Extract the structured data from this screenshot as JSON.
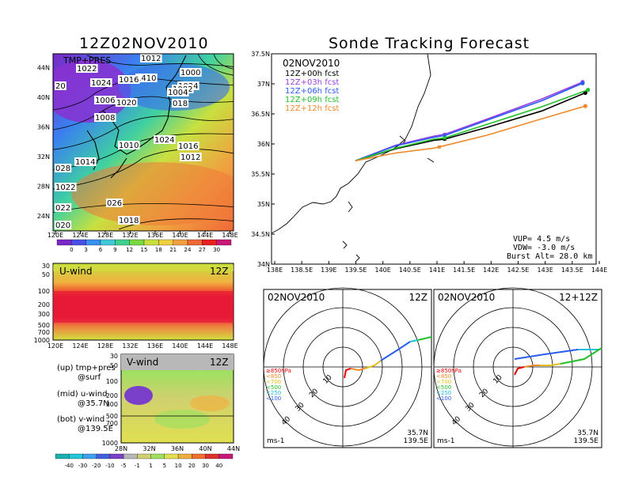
{
  "page": {
    "left_title": "12Z02NOV2010",
    "right_title": "Sonde Tracking Forecast"
  },
  "colors": {
    "purple": "#9b3fe0",
    "black": "#000000",
    "blue": "#2a5cf0",
    "green": "#22c02a",
    "orange": "#f08a2a",
    "red": "#e80000",
    "cyan": "#20c0d8"
  },
  "surface_panel": {
    "label": "TMP+PRES",
    "lon_ticks": [
      "120E",
      "124E",
      "128E",
      "132E",
      "136E",
      "140E",
      "144E",
      "148E"
    ],
    "lat_ticks": [
      "24N",
      "28N",
      "32N",
      "36N",
      "40N",
      "44N"
    ],
    "isobar_labels": [
      "1012",
      "1022",
      "1000",
      "1410",
      "1016",
      "1024",
      "20",
      "1024",
      "1002",
      "1004",
      "1006",
      "1020",
      "018",
      "1008",
      "1024",
      "1010",
      "1016",
      "1012",
      "1014",
      "028",
      "1022",
      "026",
      "022",
      "1018",
      "020"
    ],
    "colorbar_ticks": [
      "0",
      "3",
      "6",
      "9",
      "12",
      "15",
      "18",
      "21",
      "24",
      "27",
      "30"
    ],
    "colorbar_colors": [
      "#7a28c8",
      "#4a50e8",
      "#3a90f0",
      "#40c8d8",
      "#40d090",
      "#7ad840",
      "#c8e040",
      "#f0d040",
      "#f0a040",
      "#f06838",
      "#e82020",
      "#c81878"
    ]
  },
  "uwind_panel": {
    "title": "U-wind",
    "time": "12Z",
    "p_ticks": [
      "30",
      "50",
      "100",
      "200",
      "300",
      "500",
      "700",
      "1000"
    ],
    "lon_ticks": [
      "120E",
      "124E",
      "128E",
      "132E",
      "136E",
      "140E",
      "144E",
      "148E"
    ]
  },
  "vwind_panel": {
    "title": "V-wind",
    "time": "12Z",
    "p_ticks": [
      "30",
      "50",
      "100",
      "200",
      "300",
      "500",
      "700",
      "1000"
    ],
    "lat_ticks": [
      "28N",
      "32N",
      "36N",
      "40N",
      "44N"
    ],
    "colorbar_ticks": [
      "-40",
      "-30",
      "-20",
      "-10",
      "-5",
      "-1",
      "1",
      "5",
      "10",
      "20",
      "30",
      "40"
    ],
    "colorbar_colors": [
      "#1ab0b0",
      "#20c8d8",
      "#40a0f0",
      "#4060e0",
      "#7a40c8",
      "#b8b8b8",
      "#d0d070",
      "#a0e060",
      "#e0e050",
      "#f0b040",
      "#f07030",
      "#e03030",
      "#c81878"
    ]
  },
  "legend_notes": [
    {
      "line1": "(up) tmp+pres",
      "line2": "@surf"
    },
    {
      "line1": "(mid) u-wind",
      "line2": "@35.7N"
    },
    {
      "line1": "(bot) v-wind",
      "line2": "@139.5E"
    }
  ],
  "track_map": {
    "date": "02NOV2010",
    "legend": [
      {
        "label": "12Z+00h fcst",
        "color": "#000000"
      },
      {
        "label": "12Z+03h fcst",
        "color": "#9b3fe0"
      },
      {
        "label": "12Z+06h fcst",
        "color": "#2a5cf0"
      },
      {
        "label": "12Z+09h fcst",
        "color": "#22c02a"
      },
      {
        "label": "12Z+12h fcst",
        "color": "#f08a2a"
      }
    ],
    "x_ticks": [
      "138E",
      "138.5E",
      "139E",
      "139.5E",
      "140E",
      "140.5E",
      "141E",
      "141.5E",
      "142E",
      "142.5E",
      "143E",
      "143.5E",
      "144E"
    ],
    "y_ticks": [
      "34N",
      "34.5N",
      "35N",
      "35.5N",
      "36N",
      "36.5N",
      "37N",
      "37.5N"
    ],
    "vup": "VUP=  4.5 m/s",
    "vdw": "VDW= -3.0 m/s",
    "burst": "Burst Alt= 28.0 km"
  },
  "chart_data": [
    {
      "type": "line",
      "title": "Sonde Tracking Forecast",
      "xlim": [
        138,
        144
      ],
      "ylim": [
        34,
        37.5
      ],
      "series": [
        {
          "name": "12Z+00h fcst",
          "x": [
            139.55,
            140.3,
            141.0,
            141.2,
            142.0,
            143.0,
            143.8
          ],
          "y": [
            35.72,
            35.92,
            36.06,
            36.08,
            36.28,
            36.55,
            36.85
          ]
        },
        {
          "name": "12Z+03h fcst",
          "x": [
            139.55,
            140.3,
            141.0,
            141.2,
            142.0,
            143.0,
            143.75
          ],
          "y": [
            35.72,
            35.98,
            36.13,
            36.16,
            36.42,
            36.75,
            37.03
          ]
        },
        {
          "name": "12Z+06h fcst",
          "x": [
            139.55,
            140.3,
            141.0,
            141.2,
            142.0,
            143.0,
            143.75
          ],
          "y": [
            35.72,
            35.97,
            36.11,
            36.14,
            36.4,
            36.72,
            37.01
          ]
        },
        {
          "name": "12Z+09h fcst",
          "x": [
            139.55,
            140.3,
            141.0,
            141.2,
            142.0,
            143.0,
            143.85
          ],
          "y": [
            35.72,
            35.93,
            36.08,
            36.1,
            36.33,
            36.62,
            36.9
          ]
        },
        {
          "name": "12Z+12h fcst",
          "x": [
            139.55,
            140.3,
            141.0,
            141.1,
            142.0,
            143.0,
            143.8
          ],
          "y": [
            35.72,
            35.85,
            35.93,
            35.95,
            36.15,
            36.42,
            36.63
          ]
        }
      ]
    }
  ],
  "hodo_left": {
    "date": "02NOV2010",
    "time": "12Z",
    "rings": [
      "10",
      "20",
      "30",
      "40"
    ],
    "levels": [
      {
        "label": "≥850hPa",
        "color": "#e80000"
      },
      {
        "label": "<850",
        "color": "#f08a2a"
      },
      {
        "label": "<700",
        "color": "#e0c020"
      },
      {
        "label": "<500",
        "color": "#22c02a"
      },
      {
        "label": "<250",
        "color": "#20c0d8"
      },
      {
        "label": "<100",
        "color": "#2a5cf0"
      }
    ],
    "units": "ms-1",
    "lat": "35.7N",
    "lon": "139.5E"
  },
  "hodo_right": {
    "date": "02NOV2010",
    "time": "12+12Z",
    "rings": [
      "10",
      "20",
      "30",
      "40"
    ],
    "levels": [
      {
        "label": "≥850hPa",
        "color": "#e80000"
      },
      {
        "label": "<850",
        "color": "#f08a2a"
      },
      {
        "label": "<700",
        "color": "#e0c020"
      },
      {
        "label": "<500",
        "color": "#22c02a"
      },
      {
        "label": "<250",
        "color": "#20c0d8"
      },
      {
        "label": "<100",
        "color": "#2a5cf0"
      }
    ],
    "units": "ms-1",
    "lat": "35.7N",
    "lon": "139.5E"
  }
}
